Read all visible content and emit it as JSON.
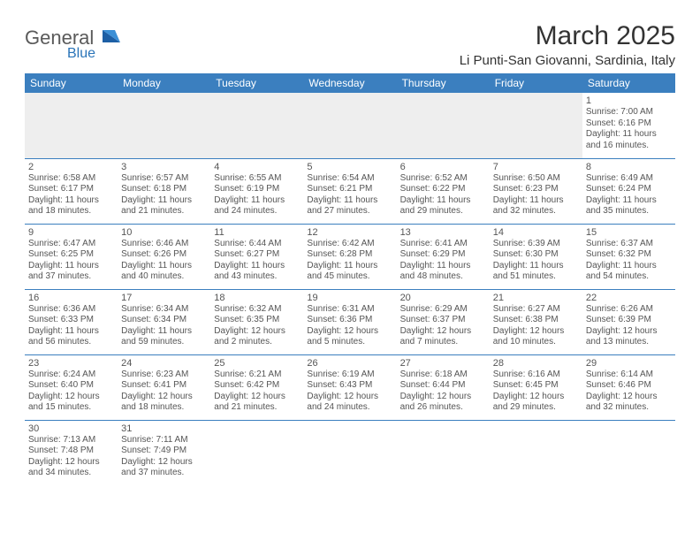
{
  "logo": {
    "word1": "General",
    "word2": "Blue"
  },
  "title": "March 2025",
  "location": "Li Punti-San Giovanni, Sardinia, Italy",
  "colors": {
    "header_bg": "#3b7fbf",
    "header_text": "#ffffff",
    "border": "#3b7fbf",
    "empty_bg": "#eeeeee",
    "text": "#555555",
    "title_text": "#333333",
    "logo_gray": "#5a5a5a",
    "logo_blue": "#2a74b8"
  },
  "weekdays": [
    "Sunday",
    "Monday",
    "Tuesday",
    "Wednesday",
    "Thursday",
    "Friday",
    "Saturday"
  ],
  "weeks": [
    [
      null,
      null,
      null,
      null,
      null,
      null,
      {
        "n": "1",
        "sr": "Sunrise: 7:00 AM",
        "ss": "Sunset: 6:16 PM",
        "dl": "Daylight: 11 hours and 16 minutes."
      }
    ],
    [
      {
        "n": "2",
        "sr": "Sunrise: 6:58 AM",
        "ss": "Sunset: 6:17 PM",
        "dl": "Daylight: 11 hours and 18 minutes."
      },
      {
        "n": "3",
        "sr": "Sunrise: 6:57 AM",
        "ss": "Sunset: 6:18 PM",
        "dl": "Daylight: 11 hours and 21 minutes."
      },
      {
        "n": "4",
        "sr": "Sunrise: 6:55 AM",
        "ss": "Sunset: 6:19 PM",
        "dl": "Daylight: 11 hours and 24 minutes."
      },
      {
        "n": "5",
        "sr": "Sunrise: 6:54 AM",
        "ss": "Sunset: 6:21 PM",
        "dl": "Daylight: 11 hours and 27 minutes."
      },
      {
        "n": "6",
        "sr": "Sunrise: 6:52 AM",
        "ss": "Sunset: 6:22 PM",
        "dl": "Daylight: 11 hours and 29 minutes."
      },
      {
        "n": "7",
        "sr": "Sunrise: 6:50 AM",
        "ss": "Sunset: 6:23 PM",
        "dl": "Daylight: 11 hours and 32 minutes."
      },
      {
        "n": "8",
        "sr": "Sunrise: 6:49 AM",
        "ss": "Sunset: 6:24 PM",
        "dl": "Daylight: 11 hours and 35 minutes."
      }
    ],
    [
      {
        "n": "9",
        "sr": "Sunrise: 6:47 AM",
        "ss": "Sunset: 6:25 PM",
        "dl": "Daylight: 11 hours and 37 minutes."
      },
      {
        "n": "10",
        "sr": "Sunrise: 6:46 AM",
        "ss": "Sunset: 6:26 PM",
        "dl": "Daylight: 11 hours and 40 minutes."
      },
      {
        "n": "11",
        "sr": "Sunrise: 6:44 AM",
        "ss": "Sunset: 6:27 PM",
        "dl": "Daylight: 11 hours and 43 minutes."
      },
      {
        "n": "12",
        "sr": "Sunrise: 6:42 AM",
        "ss": "Sunset: 6:28 PM",
        "dl": "Daylight: 11 hours and 45 minutes."
      },
      {
        "n": "13",
        "sr": "Sunrise: 6:41 AM",
        "ss": "Sunset: 6:29 PM",
        "dl": "Daylight: 11 hours and 48 minutes."
      },
      {
        "n": "14",
        "sr": "Sunrise: 6:39 AM",
        "ss": "Sunset: 6:30 PM",
        "dl": "Daylight: 11 hours and 51 minutes."
      },
      {
        "n": "15",
        "sr": "Sunrise: 6:37 AM",
        "ss": "Sunset: 6:32 PM",
        "dl": "Daylight: 11 hours and 54 minutes."
      }
    ],
    [
      {
        "n": "16",
        "sr": "Sunrise: 6:36 AM",
        "ss": "Sunset: 6:33 PM",
        "dl": "Daylight: 11 hours and 56 minutes."
      },
      {
        "n": "17",
        "sr": "Sunrise: 6:34 AM",
        "ss": "Sunset: 6:34 PM",
        "dl": "Daylight: 11 hours and 59 minutes."
      },
      {
        "n": "18",
        "sr": "Sunrise: 6:32 AM",
        "ss": "Sunset: 6:35 PM",
        "dl": "Daylight: 12 hours and 2 minutes."
      },
      {
        "n": "19",
        "sr": "Sunrise: 6:31 AM",
        "ss": "Sunset: 6:36 PM",
        "dl": "Daylight: 12 hours and 5 minutes."
      },
      {
        "n": "20",
        "sr": "Sunrise: 6:29 AM",
        "ss": "Sunset: 6:37 PM",
        "dl": "Daylight: 12 hours and 7 minutes."
      },
      {
        "n": "21",
        "sr": "Sunrise: 6:27 AM",
        "ss": "Sunset: 6:38 PM",
        "dl": "Daylight: 12 hours and 10 minutes."
      },
      {
        "n": "22",
        "sr": "Sunrise: 6:26 AM",
        "ss": "Sunset: 6:39 PM",
        "dl": "Daylight: 12 hours and 13 minutes."
      }
    ],
    [
      {
        "n": "23",
        "sr": "Sunrise: 6:24 AM",
        "ss": "Sunset: 6:40 PM",
        "dl": "Daylight: 12 hours and 15 minutes."
      },
      {
        "n": "24",
        "sr": "Sunrise: 6:23 AM",
        "ss": "Sunset: 6:41 PM",
        "dl": "Daylight: 12 hours and 18 minutes."
      },
      {
        "n": "25",
        "sr": "Sunrise: 6:21 AM",
        "ss": "Sunset: 6:42 PM",
        "dl": "Daylight: 12 hours and 21 minutes."
      },
      {
        "n": "26",
        "sr": "Sunrise: 6:19 AM",
        "ss": "Sunset: 6:43 PM",
        "dl": "Daylight: 12 hours and 24 minutes."
      },
      {
        "n": "27",
        "sr": "Sunrise: 6:18 AM",
        "ss": "Sunset: 6:44 PM",
        "dl": "Daylight: 12 hours and 26 minutes."
      },
      {
        "n": "28",
        "sr": "Sunrise: 6:16 AM",
        "ss": "Sunset: 6:45 PM",
        "dl": "Daylight: 12 hours and 29 minutes."
      },
      {
        "n": "29",
        "sr": "Sunrise: 6:14 AM",
        "ss": "Sunset: 6:46 PM",
        "dl": "Daylight: 12 hours and 32 minutes."
      }
    ],
    [
      {
        "n": "30",
        "sr": "Sunrise: 7:13 AM",
        "ss": "Sunset: 7:48 PM",
        "dl": "Daylight: 12 hours and 34 minutes."
      },
      {
        "n": "31",
        "sr": "Sunrise: 7:11 AM",
        "ss": "Sunset: 7:49 PM",
        "dl": "Daylight: 12 hours and 37 minutes."
      },
      null,
      null,
      null,
      null,
      null
    ]
  ]
}
